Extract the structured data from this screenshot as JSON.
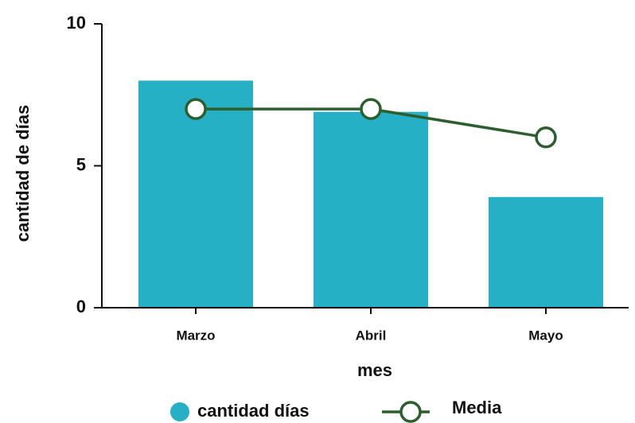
{
  "chart_data": {
    "type": "bar",
    "x_label": "mes",
    "y_label": "cantidad de días",
    "categories": [
      "Marzo",
      "Abril",
      "Mayo"
    ],
    "series": [
      {
        "name": "cantidad días",
        "type": "bar",
        "color": "#26b0c6",
        "values": [
          8,
          6.9,
          3.9
        ]
      },
      {
        "name": "Media",
        "type": "line",
        "color": "#2c5e2e",
        "values": [
          7,
          7,
          6
        ]
      }
    ],
    "ylim": [
      0,
      10
    ],
    "yticks": [
      0,
      5,
      10
    ],
    "grid": false
  }
}
